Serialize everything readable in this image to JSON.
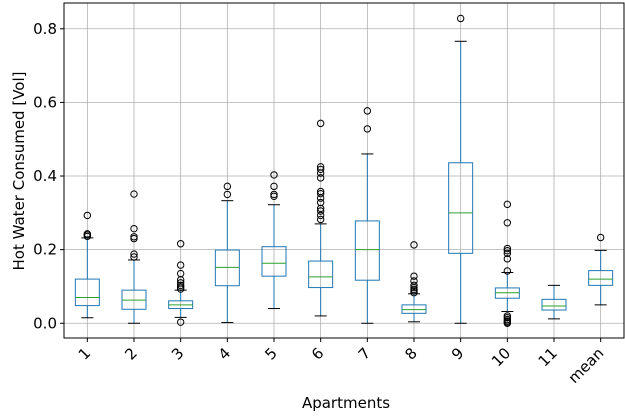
{
  "chart_data": {
    "type": "box",
    "xlabel": "Apartments",
    "ylabel": "Hot Water Consumed [Vol]",
    "ylim": [
      -0.04,
      0.87
    ],
    "yticks": [
      0.0,
      0.2,
      0.4,
      0.6,
      0.8
    ],
    "ytick_labels": [
      "0.0",
      "0.2",
      "0.4",
      "0.6",
      "0.8"
    ],
    "grid": true,
    "categories": [
      "1",
      "2",
      "3",
      "4",
      "5",
      "6",
      "7",
      "8",
      "9",
      "10",
      "11",
      "mean"
    ],
    "boxes": [
      {
        "label": "1",
        "whisker_low": 0.015,
        "q1": 0.048,
        "median": 0.07,
        "q3": 0.12,
        "whisker_high": 0.232,
        "fliers": [
          0.236,
          0.24,
          0.243,
          0.293
        ]
      },
      {
        "label": "2",
        "whisker_low": 0.0,
        "q1": 0.038,
        "median": 0.063,
        "q3": 0.09,
        "whisker_high": 0.172,
        "fliers": [
          0.18,
          0.188,
          0.23,
          0.235,
          0.257,
          0.351
        ]
      },
      {
        "label": "3",
        "whisker_low": 0.016,
        "q1": 0.04,
        "median": 0.05,
        "q3": 0.061,
        "whisker_high": 0.09,
        "fliers": [
          0.003,
          0.093,
          0.098,
          0.103,
          0.11,
          0.118,
          0.135,
          0.158,
          0.216
        ]
      },
      {
        "label": "4",
        "whisker_low": 0.002,
        "q1": 0.102,
        "median": 0.152,
        "q3": 0.199,
        "whisker_high": 0.333,
        "fliers": [
          0.35,
          0.372
        ]
      },
      {
        "label": "5",
        "whisker_low": 0.04,
        "q1": 0.128,
        "median": 0.163,
        "q3": 0.208,
        "whisker_high": 0.322,
        "fliers": [
          0.345,
          0.35,
          0.372,
          0.403
        ]
      },
      {
        "label": "6",
        "whisker_low": 0.02,
        "q1": 0.097,
        "median": 0.126,
        "q3": 0.169,
        "whisker_high": 0.27,
        "fliers": [
          0.282,
          0.293,
          0.305,
          0.312,
          0.328,
          0.34,
          0.352,
          0.358,
          0.395,
          0.408,
          0.418,
          0.425,
          0.543
        ]
      },
      {
        "label": "7",
        "whisker_low": 0.0,
        "q1": 0.117,
        "median": 0.2,
        "q3": 0.278,
        "whisker_high": 0.46,
        "fliers": [
          0.528,
          0.577
        ]
      },
      {
        "label": "8",
        "whisker_low": 0.004,
        "q1": 0.027,
        "median": 0.037,
        "q3": 0.05,
        "whisker_high": 0.08,
        "fliers": [
          0.083,
          0.088,
          0.092,
          0.097,
          0.103,
          0.115,
          0.128,
          0.213
        ]
      },
      {
        "label": "9",
        "whisker_low": 0.0,
        "q1": 0.19,
        "median": 0.3,
        "q3": 0.436,
        "whisker_high": 0.766,
        "fliers": [
          0.828
        ]
      },
      {
        "label": "10",
        "whisker_low": 0.032,
        "q1": 0.068,
        "median": 0.083,
        "q3": 0.096,
        "whisker_high": 0.138,
        "fliers": [
          0.0,
          0.003,
          0.006,
          0.01,
          0.015,
          0.02,
          0.142,
          0.175,
          0.19,
          0.197,
          0.203,
          0.273,
          0.323
        ]
      },
      {
        "label": "11",
        "whisker_low": 0.012,
        "q1": 0.036,
        "median": 0.047,
        "q3": 0.065,
        "whisker_high": 0.103,
        "fliers": []
      },
      {
        "label": "mean",
        "whisker_low": 0.05,
        "q1": 0.103,
        "median": 0.12,
        "q3": 0.143,
        "whisker_high": 0.198,
        "fliers": [
          0.233
        ]
      }
    ],
    "colors": {
      "box": "#1f77b4",
      "median": "#2ca02c",
      "whisker": "#1f77b4",
      "cap": "#000000",
      "flier": "#000000",
      "grid": "#b0b0b0",
      "axes": "#000000"
    }
  }
}
